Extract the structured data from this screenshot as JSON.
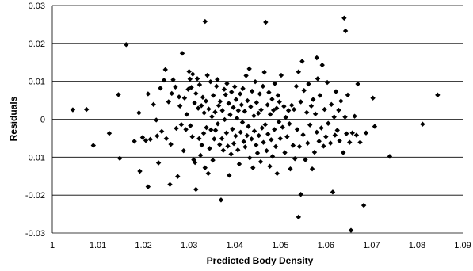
{
  "chart_data": {
    "type": "scatter",
    "title": "",
    "xlabel": "Predicted Body Density",
    "ylabel": "Residuals",
    "xlim": [
      1,
      1.09
    ],
    "ylim": [
      -0.03,
      0.03
    ],
    "x_ticks": [
      "1",
      "1.01",
      "1.02",
      "1.03",
      "1.04",
      "1.05",
      "1.06",
      "1.07",
      "1.08",
      "1.09"
    ],
    "y_ticks": [
      "0.03",
      "0.02",
      "0.01",
      "0",
      "-0.01",
      "-0.02",
      "-0.03"
    ],
    "grid": "horizontal",
    "legend": "none",
    "marker": "diamond",
    "marker_color": "#000000",
    "points": [
      [
        1.0045,
        0.0025
      ],
      [
        1.0075,
        0.0026
      ],
      [
        1.009,
        -0.0069
      ],
      [
        1.0125,
        -0.0037
      ],
      [
        1.0145,
        0.0065
      ],
      [
        1.0148,
        -0.0103
      ],
      [
        1.0162,
        0.0197
      ],
      [
        1.018,
        -0.0058
      ],
      [
        1.019,
        0.0017
      ],
      [
        1.0192,
        -0.0137
      ],
      [
        1.0198,
        -0.0048
      ],
      [
        1.0205,
        -0.0056
      ],
      [
        1.021,
        0.0067
      ],
      [
        1.0215,
        -0.0053
      ],
      [
        1.021,
        -0.0178
      ],
      [
        1.0222,
        0.0039
      ],
      [
        1.0228,
        -0.0002
      ],
      [
        1.023,
        -0.0044
      ],
      [
        1.0233,
        -0.0115
      ],
      [
        1.0237,
        0.0082
      ],
      [
        1.024,
        -0.0032
      ],
      [
        1.0245,
        0.0103
      ],
      [
        1.0248,
        0.0131
      ],
      [
        1.025,
        -0.0051
      ],
      [
        1.0255,
        0.0046
      ],
      [
        1.0258,
        -0.0172
      ],
      [
        1.026,
        -0.0066
      ],
      [
        1.0262,
        0.0068
      ],
      [
        1.0265,
        0.0104
      ],
      [
        1.027,
        0.0085
      ],
      [
        1.0272,
        -0.0024
      ],
      [
        1.0275,
        -0.0151
      ],
      [
        1.0278,
        0.0059
      ],
      [
        1.028,
        0.0035
      ],
      [
        1.0283,
        -0.0014
      ],
      [
        1.0285,
        0.0174
      ],
      [
        1.0288,
        -0.0083
      ],
      [
        1.029,
        0.0056
      ],
      [
        1.0293,
        -0.0027
      ],
      [
        1.0295,
        0.0013
      ],
      [
        1.0298,
        0.0079
      ],
      [
        1.03,
        0.0126
      ],
      [
        1.0302,
        0.0106
      ],
      [
        1.0303,
        -0.0017
      ],
      [
        1.0305,
        0.0084
      ],
      [
        1.0307,
        -0.0046
      ],
      [
        1.0308,
        0.0119
      ],
      [
        1.031,
        -0.0107
      ],
      [
        1.0312,
        0.0043
      ],
      [
        1.0313,
        -0.0114
      ],
      [
        1.0315,
        0.0068
      ],
      [
        1.0315,
        -0.0185
      ],
      [
        1.0318,
        0.0107
      ],
      [
        1.032,
        0.0029
      ],
      [
        1.0322,
        -0.0051
      ],
      [
        1.0323,
        0.0091
      ],
      [
        1.0325,
        -0.0095
      ],
      [
        1.0327,
        0.0036
      ],
      [
        1.0328,
        -0.0068
      ],
      [
        1.033,
        0.0058
      ],
      [
        1.0332,
        -0.0037
      ],
      [
        1.0333,
        0.0017
      ],
      [
        1.0335,
        0.0258
      ],
      [
        1.0335,
        -0.0128
      ],
      [
        1.0337,
        0.0048
      ],
      [
        1.0338,
        -0.0022
      ],
      [
        1.034,
        0.0116
      ],
      [
        1.0342,
        -0.0143
      ],
      [
        1.0343,
        0.0027
      ],
      [
        1.0345,
        -0.0077
      ],
      [
        1.0347,
        0.0099
      ],
      [
        1.0348,
        -0.0028
      ],
      [
        1.035,
        0.0007
      ],
      [
        1.0352,
        -0.0108
      ],
      [
        1.0353,
        0.0063
      ],
      [
        1.0355,
        -0.0052
      ],
      [
        1.0357,
        0.0019
      ],
      [
        1.0358,
        -0.0029
      ],
      [
        1.036,
        0.0087
      ],
      [
        1.0362,
        0.0105
      ],
      [
        1.0363,
        -0.0012
      ],
      [
        1.0365,
        0.0036
      ],
      [
        1.0367,
        -0.0067
      ],
      [
        1.0368,
        0.0047
      ],
      [
        1.037,
        -0.0213
      ],
      [
        1.0372,
        -0.0051
      ],
      [
        1.0373,
        0.0023
      ],
      [
        1.0375,
        -0.0082
      ],
      [
        1.0377,
        0.0079
      ],
      [
        1.0378,
        -0.0001
      ],
      [
        1.038,
        0.0065
      ],
      [
        1.0382,
        -0.0036
      ],
      [
        1.0383,
        0.0094
      ],
      [
        1.0385,
        -0.0071
      ],
      [
        1.0387,
        0.0042
      ],
      [
        1.0388,
        -0.0148
      ],
      [
        1.039,
        0.0012
      ],
      [
        1.0392,
        -0.0092
      ],
      [
        1.0393,
        0.0072
      ],
      [
        1.0395,
        -0.0026
      ],
      [
        1.0397,
        0.0031
      ],
      [
        1.0398,
        -0.0064
      ],
      [
        1.04,
        0.0086
      ],
      [
        1.0402,
        -0.0044
      ],
      [
        1.0403,
        0.0052
      ],
      [
        1.0405,
        0.0003
      ],
      [
        1.0407,
        -0.0081
      ],
      [
        1.0408,
        0.0023
      ],
      [
        1.041,
        -0.0118
      ],
      [
        1.0412,
        0.0067
      ],
      [
        1.0413,
        -0.0034
      ],
      [
        1.0415,
        0.0038
      ],
      [
        1.0417,
        -0.0008
      ],
      [
        1.0418,
        0.0081
      ],
      [
        1.042,
        -0.0059
      ],
      [
        1.0422,
        0.0021
      ],
      [
        1.0423,
        -0.0073
      ],
      [
        1.0425,
        0.0115
      ],
      [
        1.0427,
        -0.0043
      ],
      [
        1.0428,
        0.0049
      ],
      [
        1.043,
        -0.0019
      ],
      [
        1.0432,
        0.0133
      ],
      [
        1.0433,
        -0.0102
      ],
      [
        1.0435,
        0.0033
      ],
      [
        1.0437,
        -0.0052
      ],
      [
        1.0438,
        0.0074
      ],
      [
        1.044,
        -0.0128
      ],
      [
        1.0442,
        0.0009
      ],
      [
        1.0443,
        -0.0031
      ],
      [
        1.0445,
        0.0099
      ],
      [
        1.0447,
        -0.0068
      ],
      [
        1.0448,
        0.0044
      ],
      [
        1.045,
        -0.0089
      ],
      [
        1.0452,
        0.0016
      ],
      [
        1.0453,
        -0.0043
      ],
      [
        1.0455,
        0.0067
      ],
      [
        1.0457,
        -0.0112
      ],
      [
        1.0458,
        0.0025
      ],
      [
        1.046,
        -0.0023
      ],
      [
        1.0462,
        0.0087
      ],
      [
        1.0463,
        -0.0061
      ],
      [
        1.0465,
        0.0124
      ],
      [
        1.0467,
        -0.0014
      ],
      [
        1.0468,
        0.0256
      ],
      [
        1.047,
        -0.0083
      ],
      [
        1.0472,
        0.0038
      ],
      [
        1.0473,
        -0.0039
      ],
      [
        1.0475,
        0.0071
      ],
      [
        1.0477,
        -0.0124
      ],
      [
        1.0478,
        0.0013
      ],
      [
        1.048,
        -0.0054
      ],
      [
        1.0482,
        0.0053
      ],
      [
        1.0483,
        -0.0098
      ],
      [
        1.0485,
        0.0024
      ],
      [
        1.0487,
        -0.0027
      ],
      [
        1.0488,
        0.0094
      ],
      [
        1.049,
        -0.0072
      ],
      [
        1.0492,
        0.0029
      ],
      [
        1.0493,
        -0.0143
      ],
      [
        1.0495,
        0.0063
      ],
      [
        1.0497,
        -0.0007
      ],
      [
        1.0498,
        0.0046
      ],
      [
        1.05,
        -0.0051
      ],
      [
        1.0502,
        0.0116
      ],
      [
        1.0505,
        -0.0021
      ],
      [
        1.0508,
        0.0034
      ],
      [
        1.051,
        -0.0088
      ],
      [
        1.0512,
        0.0005
      ],
      [
        1.0515,
        -0.0046
      ],
      [
        1.0518,
        0.0023
      ],
      [
        1.052,
        -0.0012
      ],
      [
        1.0522,
        -0.0131
      ],
      [
        1.0525,
        0.0037
      ],
      [
        1.0528,
        -0.0069
      ],
      [
        1.053,
        0.0026
      ],
      [
        1.0532,
        -0.0104
      ],
      [
        1.0535,
        0.0087
      ],
      [
        1.0537,
        -0.0027
      ],
      [
        1.054,
        -0.0258
      ],
      [
        1.054,
        0.0125
      ],
      [
        1.0542,
        -0.0072
      ],
      [
        1.0545,
        -0.0198
      ],
      [
        1.0545,
        0.0046
      ],
      [
        1.0548,
        0.0153
      ],
      [
        1.055,
        -0.0041
      ],
      [
        1.0552,
        0.0076
      ],
      [
        1.0555,
        -0.0107
      ],
      [
        1.0558,
        0.0018
      ],
      [
        1.056,
        -0.0063
      ],
      [
        1.0562,
        0.0093
      ],
      [
        1.0565,
        -0.0015
      ],
      [
        1.0568,
        0.0035
      ],
      [
        1.057,
        -0.0131
      ],
      [
        1.0572,
        0.0052
      ],
      [
        1.0575,
        -0.0087
      ],
      [
        1.0577,
        0.0014
      ],
      [
        1.058,
        0.0162
      ],
      [
        1.058,
        -0.0034
      ],
      [
        1.0582,
        0.0107
      ],
      [
        1.0585,
        -0.0058
      ],
      [
        1.0587,
        0.0063
      ],
      [
        1.059,
        -0.0023
      ],
      [
        1.0592,
        0.0143
      ],
      [
        1.0595,
        -0.0071
      ],
      [
        1.0597,
        0.0026
      ],
      [
        1.06,
        -0.0046
      ],
      [
        1.0603,
        0.0097
      ],
      [
        1.0605,
        -0.0011
      ],
      [
        1.061,
        -0.0063
      ],
      [
        1.0612,
        0.0039
      ],
      [
        1.0615,
        -0.0192
      ],
      [
        1.0618,
        0.0006
      ],
      [
        1.062,
        -0.0042
      ],
      [
        1.0622,
        0.0073
      ],
      [
        1.0625,
        -0.0029
      ],
      [
        1.0628,
        0.0024
      ],
      [
        1.063,
        -0.0057
      ],
      [
        1.0633,
        0.0048
      ],
      [
        1.0638,
        -0.0088
      ],
      [
        1.064,
        0.0267
      ],
      [
        1.0642,
        0.0006
      ],
      [
        1.0643,
        0.0233
      ],
      [
        1.0645,
        -0.0038
      ],
      [
        1.0648,
        0.0064
      ],
      [
        1.0652,
        -0.0061
      ],
      [
        1.0655,
        -0.0293
      ],
      [
        1.0658,
        -0.0036
      ],
      [
        1.0663,
        0.0008
      ],
      [
        1.0667,
        -0.0042
      ],
      [
        1.067,
        0.0093
      ],
      [
        1.0675,
        -0.0061
      ],
      [
        1.0683,
        -0.0227
      ],
      [
        1.0688,
        -0.0036
      ],
      [
        1.0703,
        0.0056
      ],
      [
        1.0707,
        -0.0019
      ],
      [
        1.074,
        -0.0098
      ],
      [
        1.0812,
        -0.0013
      ],
      [
        1.0845,
        0.0064
      ]
    ]
  }
}
